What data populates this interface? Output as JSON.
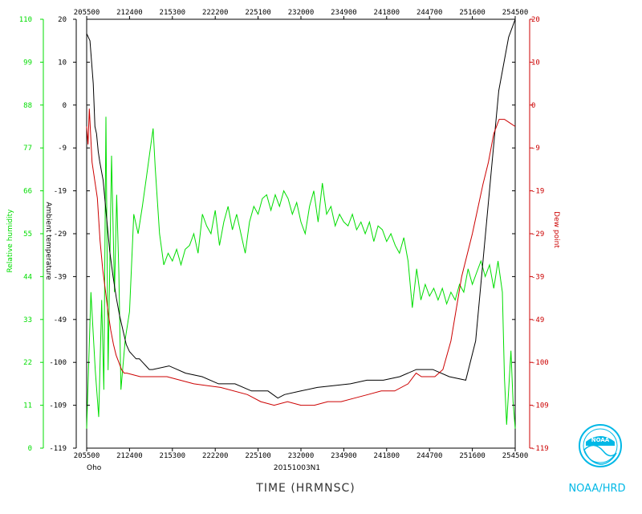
{
  "chart_data": {
    "type": "line",
    "storm_name": "Oho",
    "flight_id": "20151003N1",
    "xlabel": "TIME (HRMNSC)",
    "x_ticks": [
      "205500",
      "212400",
      "215300",
      "222200",
      "225100",
      "232000",
      "234900",
      "241800",
      "244700",
      "251600",
      "254500"
    ],
    "axes": {
      "rh": {
        "label": "Relative humidity",
        "color": "#00dd00",
        "ticks": [
          0,
          11,
          22,
          33,
          44,
          55,
          66,
          77,
          88,
          99,
          110
        ],
        "ylim": [
          0,
          110
        ]
      },
      "temp": {
        "label": "Ambient temperature",
        "color": "#000000",
        "ticks": [
          "-119",
          "-109",
          "-100",
          "-49",
          "-39",
          "-29",
          "-19",
          "-9",
          "0",
          "10",
          "20"
        ]
      },
      "dew": {
        "label": "Dew point",
        "color": "#cc0000",
        "ticks": [
          "-119",
          "-109",
          "-100",
          "-49",
          "-39",
          "-29",
          "-19",
          "-9",
          "0",
          "10",
          "20"
        ]
      }
    },
    "series": [
      {
        "key": "rh",
        "color": "#00dd00",
        "points": [
          [
            0,
            5
          ],
          [
            0.01,
            40
          ],
          [
            0.02,
            20
          ],
          [
            0.028,
            8
          ],
          [
            0.035,
            38
          ],
          [
            0.04,
            15
          ],
          [
            0.045,
            85
          ],
          [
            0.05,
            20
          ],
          [
            0.058,
            75
          ],
          [
            0.065,
            40
          ],
          [
            0.07,
            65
          ],
          [
            0.075,
            45
          ],
          [
            0.08,
            15
          ],
          [
            0.09,
            28
          ],
          [
            0.1,
            35
          ],
          [
            0.11,
            60
          ],
          [
            0.12,
            55
          ],
          [
            0.13,
            62
          ],
          [
            0.14,
            70
          ],
          [
            0.15,
            78
          ],
          [
            0.155,
            82
          ],
          [
            0.16,
            72
          ],
          [
            0.17,
            55
          ],
          [
            0.18,
            47
          ],
          [
            0.19,
            50
          ],
          [
            0.2,
            48
          ],
          [
            0.21,
            51
          ],
          [
            0.22,
            47
          ],
          [
            0.23,
            51
          ],
          [
            0.24,
            52
          ],
          [
            0.25,
            55
          ],
          [
            0.26,
            50
          ],
          [
            0.27,
            60
          ],
          [
            0.28,
            57
          ],
          [
            0.29,
            55
          ],
          [
            0.3,
            61
          ],
          [
            0.31,
            52
          ],
          [
            0.32,
            58
          ],
          [
            0.33,
            62
          ],
          [
            0.34,
            56
          ],
          [
            0.35,
            60
          ],
          [
            0.36,
            55
          ],
          [
            0.37,
            50
          ],
          [
            0.38,
            58
          ],
          [
            0.39,
            62
          ],
          [
            0.4,
            60
          ],
          [
            0.41,
            64
          ],
          [
            0.42,
            65
          ],
          [
            0.43,
            61
          ],
          [
            0.44,
            65
          ],
          [
            0.45,
            62
          ],
          [
            0.46,
            66
          ],
          [
            0.47,
            64
          ],
          [
            0.48,
            60
          ],
          [
            0.49,
            63
          ],
          [
            0.5,
            58
          ],
          [
            0.51,
            55
          ],
          [
            0.52,
            62
          ],
          [
            0.53,
            66
          ],
          [
            0.54,
            58
          ],
          [
            0.55,
            68
          ],
          [
            0.56,
            60
          ],
          [
            0.57,
            62
          ],
          [
            0.58,
            57
          ],
          [
            0.59,
            60
          ],
          [
            0.6,
            58
          ],
          [
            0.61,
            57
          ],
          [
            0.62,
            60
          ],
          [
            0.63,
            56
          ],
          [
            0.64,
            58
          ],
          [
            0.65,
            55
          ],
          [
            0.66,
            58
          ],
          [
            0.67,
            53
          ],
          [
            0.68,
            57
          ],
          [
            0.69,
            56
          ],
          [
            0.7,
            53
          ],
          [
            0.71,
            55
          ],
          [
            0.72,
            52
          ],
          [
            0.73,
            50
          ],
          [
            0.74,
            54
          ],
          [
            0.75,
            48
          ],
          [
            0.76,
            36
          ],
          [
            0.77,
            46
          ],
          [
            0.78,
            38
          ],
          [
            0.79,
            42
          ],
          [
            0.8,
            39
          ],
          [
            0.81,
            41
          ],
          [
            0.82,
            38
          ],
          [
            0.83,
            41
          ],
          [
            0.84,
            37
          ],
          [
            0.85,
            40
          ],
          [
            0.86,
            38
          ],
          [
            0.87,
            42
          ],
          [
            0.88,
            40
          ],
          [
            0.89,
            46
          ],
          [
            0.9,
            42
          ],
          [
            0.91,
            45
          ],
          [
            0.92,
            48
          ],
          [
            0.93,
            44
          ],
          [
            0.94,
            47
          ],
          [
            0.95,
            41
          ],
          [
            0.96,
            48
          ],
          [
            0.97,
            40
          ],
          [
            0.975,
            18
          ],
          [
            0.98,
            6
          ],
          [
            0.99,
            25
          ],
          [
            0.995,
            12
          ],
          [
            1.0,
            5
          ]
        ]
      },
      {
        "key": "temp",
        "color": "#000000",
        "points": [
          [
            0,
            116
          ],
          [
            0.01,
            114
          ],
          [
            0.02,
            102
          ],
          [
            0.025,
            90
          ],
          [
            0.03,
            88
          ],
          [
            0.035,
            83
          ],
          [
            0.04,
            80
          ],
          [
            0.05,
            75
          ],
          [
            0.06,
            65
          ],
          [
            0.07,
            55
          ],
          [
            0.08,
            48
          ],
          [
            0.09,
            42
          ],
          [
            0.1,
            37
          ],
          [
            0.11,
            33
          ],
          [
            0.12,
            29
          ],
          [
            0.13,
            27
          ],
          [
            0.14,
            26
          ],
          [
            0.15,
            25
          ],
          [
            0.16,
            25
          ],
          [
            0.17,
            24
          ],
          [
            0.18,
            23
          ],
          [
            0.19,
            22
          ],
          [
            0.2,
            22
          ],
          [
            0.25,
            23
          ],
          [
            0.3,
            21
          ],
          [
            0.35,
            20
          ],
          [
            0.4,
            18
          ],
          [
            0.45,
            18
          ],
          [
            0.5,
            16
          ],
          [
            0.55,
            16
          ],
          [
            0.58,
            14
          ],
          [
            0.6,
            15
          ],
          [
            0.65,
            16
          ],
          [
            0.7,
            17
          ],
          [
            0.75,
            17.5
          ],
          [
            0.8,
            18
          ],
          [
            0.85,
            19
          ],
          [
            0.9,
            19
          ],
          [
            0.95,
            20
          ],
          [
            1,
            22
          ],
          [
            1.05,
            22
          ],
          [
            1.1,
            20
          ],
          [
            1.15,
            19
          ],
          [
            1.18,
            30
          ],
          [
            1.2,
            50
          ],
          [
            1.23,
            80
          ],
          [
            1.25,
            100
          ],
          [
            1.28,
            115
          ],
          [
            1.3,
            120
          ]
        ]
      },
      {
        "key": "dew",
        "color": "#cc0000",
        "points": [
          [
            0,
            90
          ],
          [
            0.005,
            85
          ],
          [
            0.01,
            95
          ],
          [
            0.02,
            80
          ],
          [
            0.03,
            75
          ],
          [
            0.04,
            70
          ],
          [
            0.05,
            58
          ],
          [
            0.06,
            50
          ],
          [
            0.07,
            44
          ],
          [
            0.08,
            38
          ],
          [
            0.09,
            33
          ],
          [
            0.1,
            29
          ],
          [
            0.11,
            26
          ],
          [
            0.12,
            24
          ],
          [
            0.13,
            22
          ],
          [
            0.14,
            21
          ],
          [
            0.15,
            21
          ],
          [
            0.2,
            20
          ],
          [
            0.3,
            20
          ],
          [
            0.4,
            18
          ],
          [
            0.5,
            17
          ],
          [
            0.6,
            15
          ],
          [
            0.65,
            13
          ],
          [
            0.7,
            12
          ],
          [
            0.75,
            13
          ],
          [
            0.8,
            12
          ],
          [
            0.85,
            12
          ],
          [
            0.9,
            13
          ],
          [
            0.95,
            13
          ],
          [
            1.0,
            14
          ],
          [
            1.05,
            15
          ],
          [
            1.1,
            16
          ],
          [
            1.15,
            16
          ],
          [
            1.2,
            18
          ],
          [
            1.23,
            21
          ],
          [
            1.25,
            20
          ],
          [
            1.28,
            20
          ],
          [
            1.3,
            20
          ],
          [
            1.33,
            22
          ],
          [
            1.36,
            30
          ],
          [
            1.4,
            48
          ],
          [
            1.44,
            60
          ],
          [
            1.48,
            74
          ],
          [
            1.5,
            80
          ],
          [
            1.52,
            88
          ],
          [
            1.54,
            92
          ],
          [
            1.56,
            92
          ],
          [
            1.6,
            90
          ]
        ]
      }
    ]
  },
  "brand": {
    "logo_text": "NOAA",
    "label": "NOAA/HRD"
  }
}
